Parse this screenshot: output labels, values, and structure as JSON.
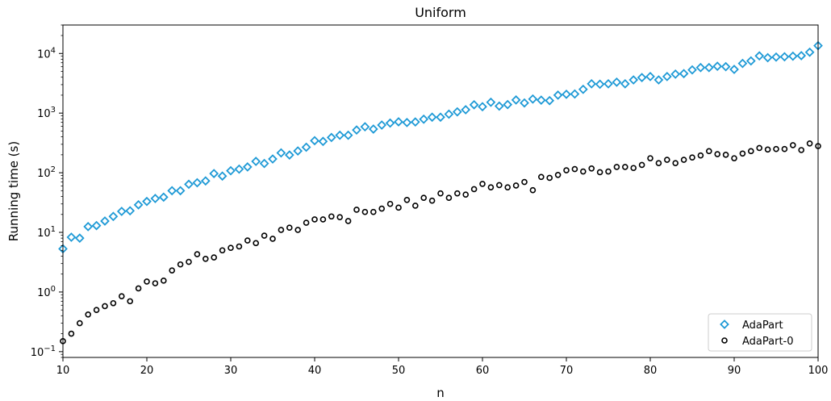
{
  "chart_data": {
    "type": "scatter",
    "title": "Uniform",
    "xlabel": "n",
    "ylabel": "Running time (s)",
    "xlim": [
      10,
      100
    ],
    "ylim": [
      0.08,
      30000
    ],
    "yscale": "log",
    "x_ticks": [
      10,
      20,
      30,
      40,
      50,
      60,
      70,
      80,
      90,
      100
    ],
    "y_ticks": [
      {
        "value": 0.1,
        "base": "10",
        "exp": "−1"
      },
      {
        "value": 1,
        "base": "10",
        "exp": "0"
      },
      {
        "value": 10,
        "base": "10",
        "exp": "1"
      },
      {
        "value": 100,
        "base": "10",
        "exp": "2"
      },
      {
        "value": 1000,
        "base": "10",
        "exp": "3"
      },
      {
        "value": 10000,
        "base": "10",
        "exp": "4"
      }
    ],
    "grid": false,
    "legend_position": "bottom-right",
    "x": [
      10,
      11,
      12,
      13,
      14,
      15,
      16,
      17,
      18,
      19,
      20,
      21,
      22,
      23,
      24,
      25,
      26,
      27,
      28,
      29,
      30,
      31,
      32,
      33,
      34,
      35,
      36,
      37,
      38,
      39,
      40,
      41,
      42,
      43,
      44,
      45,
      46,
      47,
      48,
      49,
      50,
      51,
      52,
      53,
      54,
      55,
      56,
      57,
      58,
      59,
      60,
      61,
      62,
      63,
      64,
      65,
      66,
      67,
      68,
      69,
      70,
      71,
      72,
      73,
      74,
      75,
      76,
      77,
      78,
      79,
      80,
      81,
      82,
      83,
      84,
      85,
      86,
      87,
      88,
      89,
      90,
      91,
      92,
      93,
      94,
      95,
      96,
      97,
      98,
      99,
      100
    ],
    "series": [
      {
        "name": "AdaPart",
        "marker": "diamond",
        "color": "#1f9ad6",
        "values": [
          5.3,
          8.3,
          8.0,
          12.5,
          13.0,
          15.5,
          18.5,
          22.5,
          23.0,
          29.0,
          33.0,
          37.0,
          39.0,
          50.0,
          50.0,
          64.0,
          68.0,
          73.0,
          97.0,
          88.0,
          108.0,
          115.0,
          125.0,
          155.0,
          143.0,
          170.0,
          215.0,
          198.0,
          232.0,
          268.0,
          345.0,
          335.0,
          390.0,
          425.0,
          425.0,
          520.0,
          590.0,
          540.0,
          630.0,
          680.0,
          715.0,
          695.0,
          710.0,
          790.0,
          855.0,
          855.0,
          960.0,
          1050.0,
          1140.0,
          1380.0,
          1280.0,
          1520.0,
          1310.0,
          1390.0,
          1660.0,
          1480.0,
          1720.0,
          1650.0,
          1620.0,
          2000.0,
          2070.0,
          2090.0,
          2500.0,
          3100.0,
          3050.0,
          3100.0,
          3300.0,
          3100.0,
          3600.0,
          3950.0,
          4100.0,
          3600.0,
          4100.0,
          4500.0,
          4600.0,
          5300.0,
          5800.0,
          5800.0,
          6100.0,
          6000.0,
          5400.0,
          6800.0,
          7500.0,
          9100.0,
          8500.0,
          8700.0,
          8800.0,
          9000.0,
          9200.0,
          10500.0,
          13500.0
        ]
      },
      {
        "name": "AdaPart-0",
        "marker": "circle",
        "color": "#000000",
        "values": [
          0.15,
          0.2,
          0.3,
          0.42,
          0.5,
          0.58,
          0.65,
          0.85,
          0.7,
          1.15,
          1.5,
          1.4,
          1.55,
          2.3,
          2.9,
          3.2,
          4.3,
          3.6,
          3.8,
          5.0,
          5.5,
          5.8,
          7.3,
          6.6,
          8.8,
          7.8,
          11.0,
          12.0,
          11.0,
          14.5,
          16.5,
          16.5,
          18.5,
          18.0,
          15.5,
          24.0,
          22.0,
          22.0,
          25.0,
          30.0,
          26.0,
          35.0,
          28.0,
          38.0,
          34.0,
          45.0,
          38.0,
          45.0,
          43.0,
          53.0,
          65.0,
          57.0,
          62.0,
          57.0,
          61.0,
          70.0,
          51.0,
          85.0,
          82.0,
          92.0,
          110.0,
          115.0,
          105.0,
          118.0,
          102.0,
          105.0,
          125.0,
          125.0,
          120.0,
          135.0,
          175.0,
          145.0,
          165.0,
          145.0,
          165.0,
          180.0,
          195.0,
          230.0,
          205.0,
          200.0,
          175.0,
          210.0,
          230.0,
          260.0,
          245.0,
          250.0,
          250.0,
          290.0,
          240.0,
          310.0,
          280.0
        ]
      }
    ]
  }
}
